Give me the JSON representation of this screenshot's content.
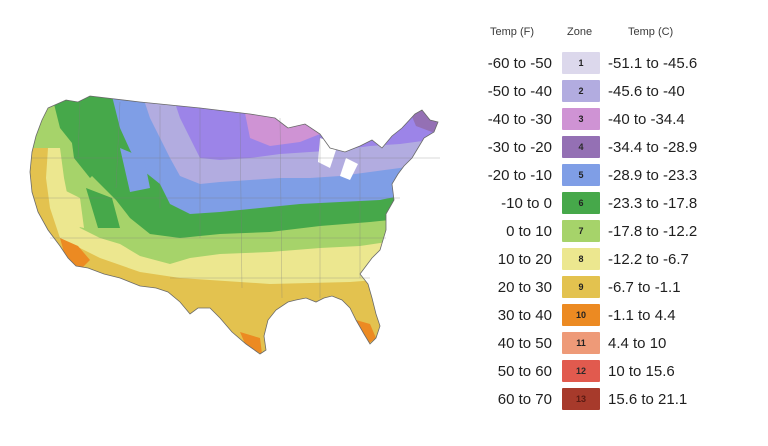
{
  "legend": {
    "header_f": "Temp (F)",
    "header_zone": "Zone",
    "header_c": "Temp (C)",
    "zones": [
      {
        "zone": "1",
        "f": "-60 to -50",
        "c": "-51.1 to -45.6",
        "color": "#dcd8ec"
      },
      {
        "zone": "2",
        "f": "-50 to -40",
        "c": "-45.6 to -40",
        "color": "#b2ace0"
      },
      {
        "zone": "3",
        "f": "-40 to -30",
        "c": "-40 to -34.4",
        "color": "#cf93d4"
      },
      {
        "zone": "4",
        "f": "-30 to -20",
        "c": "-34.4 to -28.9",
        "color": "#9470b4"
      },
      {
        "zone": "5",
        "f": "-20 to -10",
        "c": "-28.9 to -23.3",
        "color": "#7f9ee6"
      },
      {
        "zone": "6",
        "f": "-10 to 0",
        "c": "-23.3 to -17.8",
        "color": "#46a84a"
      },
      {
        "zone": "7",
        "f": "0 to 10",
        "c": "-17.8 to -12.2",
        "color": "#a6d36a"
      },
      {
        "zone": "8",
        "f": "10 to 20",
        "c": "-12.2 to -6.7",
        "color": "#ece78f"
      },
      {
        "zone": "9",
        "f": "20 to 30",
        "c": "-6.7 to -1.1",
        "color": "#e3c24f"
      },
      {
        "zone": "10",
        "f": "30 to 40",
        "c": "-1.1 to 4.4",
        "color": "#ec8a22"
      },
      {
        "zone": "11",
        "f": "40 to 50",
        "c": "4.4 to 10",
        "color": "#ee9a78"
      },
      {
        "zone": "12",
        "f": "50 to 60",
        "c": "10 to 15.6",
        "color": "#e15a4e"
      },
      {
        "zone": "13",
        "f": "60 to 70",
        "c": "15.6 to 21.1",
        "color": "#a73a2b"
      }
    ]
  },
  "map": {
    "land_color": "#ece78f"
  }
}
